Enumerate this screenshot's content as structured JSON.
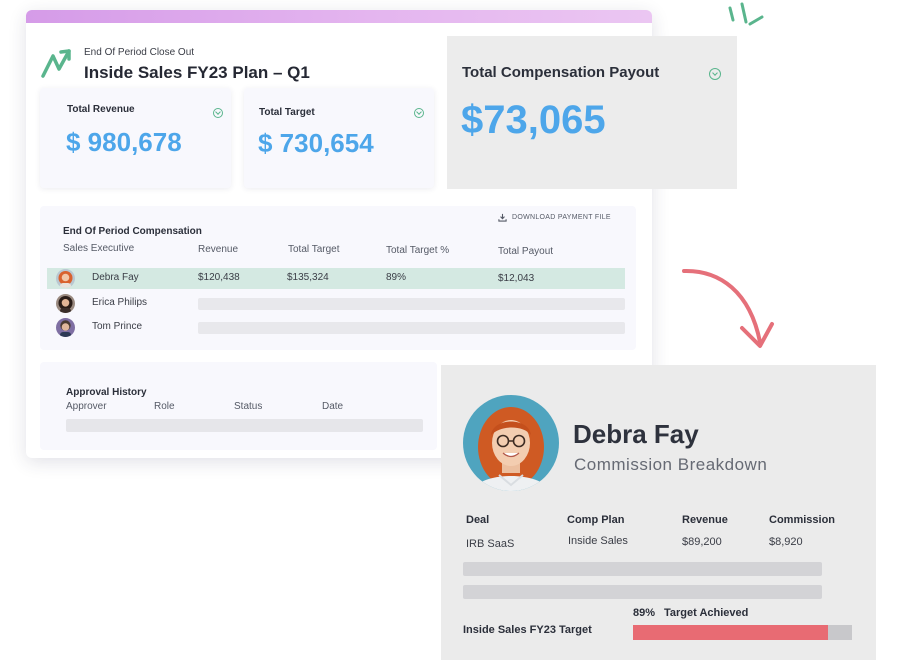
{
  "header": {
    "eyebrow": "End Of Period Close Out",
    "title": "Inside Sales FY23 Plan – Q1"
  },
  "metrics": {
    "revenue": {
      "label": "Total Revenue",
      "value": "$ 980,678"
    },
    "target": {
      "label": "Total Target",
      "value": "$ 730,654"
    }
  },
  "payout": {
    "label": "Total Compensation Payout",
    "value": "$73,065"
  },
  "compensation": {
    "title": "End Of Period Compensation",
    "download_label": "DOWNLOAD PAYMENT FILE",
    "columns": [
      "Sales Executive",
      "Revenue",
      "Total Target",
      "Total Target %",
      "Total Payout"
    ],
    "rows": [
      {
        "name": "Debra Fay",
        "revenue": "$120,438",
        "target": "$135,324",
        "pct": "89%",
        "payout": "$12,043"
      },
      {
        "name": "Erica Philips"
      },
      {
        "name": "Tom Prince"
      }
    ]
  },
  "approval": {
    "title": "Approval History",
    "columns": [
      "Approver",
      "Role",
      "Status",
      "Date"
    ]
  },
  "person": {
    "name": "Debra Fay",
    "subtitle": "Commission Breakdown",
    "columns": [
      "Deal",
      "Comp Plan",
      "Revenue",
      "Commission"
    ],
    "deal": {
      "deal": "IRB SaaS",
      "plan": "Inside Sales",
      "revenue": "$89,200",
      "commission": "$8,920"
    },
    "target_label": "Inside Sales FY23 Target",
    "achieved_pct": "89%",
    "achieved_label": "Target Achieved",
    "achieved_fraction": 0.89
  },
  "colors": {
    "accent_blue": "#4da6ea",
    "accent_green": "#5ab58d",
    "highlight_row": "#d4e9e2",
    "progress_red": "#e86b73",
    "arrow_red": "#e5707a"
  },
  "icons": {
    "logo": "trend-arrow-logo",
    "chevron": "chevron-circle-icon",
    "download": "download-icon"
  }
}
